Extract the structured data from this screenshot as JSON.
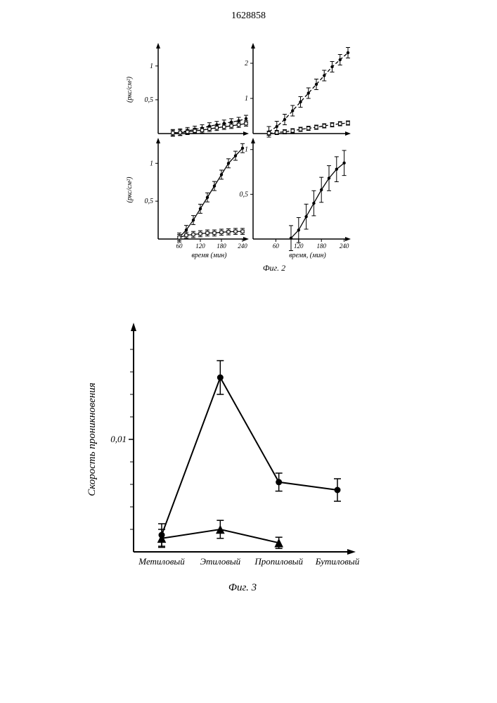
{
  "page_number": "1628858",
  "fig2": {
    "caption": "Фиг. 2",
    "panels": {
      "top_left": {
        "ylabel": "(ркс/см²)",
        "yticks": [
          0.5,
          1
        ],
        "ytick_labels": [
          "0,5",
          "1"
        ],
        "xlim": [
          0,
          240
        ],
        "ylim": [
          0,
          1.3
        ],
        "series1": {
          "marker": "filled-circle",
          "color": "#000000",
          "dash": "dashed",
          "points": [
            [
              40,
              0.01
            ],
            [
              60,
              0.02
            ],
            [
              80,
              0.04
            ],
            [
              100,
              0.06
            ],
            [
              120,
              0.08
            ],
            [
              140,
              0.11
            ],
            [
              160,
              0.13
            ],
            [
              180,
              0.15
            ],
            [
              200,
              0.17
            ],
            [
              220,
              0.19
            ],
            [
              240,
              0.22
            ]
          ],
          "error": 0.05
        },
        "series2": {
          "marker": "open-square",
          "color": "#000000",
          "points": [
            [
              40,
              0.01
            ],
            [
              60,
              0.015
            ],
            [
              80,
              0.025
            ],
            [
              100,
              0.04
            ],
            [
              120,
              0.05
            ],
            [
              140,
              0.07
            ],
            [
              160,
              0.085
            ],
            [
              180,
              0.1
            ],
            [
              200,
              0.115
            ],
            [
              220,
              0.13
            ],
            [
              240,
              0.15
            ]
          ],
          "error": 0.04
        }
      },
      "top_right": {
        "yticks": [
          1,
          2
        ],
        "ytick_labels": [
          "1",
          "2"
        ],
        "xlim": [
          0,
          240
        ],
        "ylim": [
          0,
          2.5
        ],
        "series1": {
          "marker": "filled-circle",
          "color": "#000000",
          "dash": "dashed",
          "points": [
            [
              40,
              0.05
            ],
            [
              60,
              0.2
            ],
            [
              80,
              0.4
            ],
            [
              100,
              0.65
            ],
            [
              120,
              0.9
            ],
            [
              140,
              1.15
            ],
            [
              160,
              1.4
            ],
            [
              180,
              1.65
            ],
            [
              200,
              1.9
            ],
            [
              220,
              2.1
            ],
            [
              240,
              2.3
            ]
          ],
          "error": 0.15
        },
        "series2": {
          "marker": "open-square",
          "color": "#000000",
          "dash": "dashed",
          "points": [
            [
              40,
              0.01
            ],
            [
              60,
              0.03
            ],
            [
              80,
              0.05
            ],
            [
              100,
              0.08
            ],
            [
              120,
              0.12
            ],
            [
              140,
              0.15
            ],
            [
              160,
              0.18
            ],
            [
              180,
              0.22
            ],
            [
              200,
              0.25
            ],
            [
              220,
              0.28
            ],
            [
              240,
              0.3
            ]
          ],
          "error": 0.06
        }
      },
      "bottom_left": {
        "ylabel": "(ркс/см²)",
        "xlabel": "время (мин)",
        "yticks": [
          0.5,
          1
        ],
        "ytick_labels": [
          "0,5",
          "1"
        ],
        "xticks": [
          60,
          120,
          180,
          240
        ],
        "xtick_labels": [
          "60",
          "120",
          "180",
          "240"
        ],
        "xlim": [
          0,
          250
        ],
        "ylim": [
          0,
          1.3
        ],
        "series1": {
          "marker": "filled-circle",
          "color": "#000000",
          "points": [
            [
              60,
              0.02
            ],
            [
              80,
              0.12
            ],
            [
              100,
              0.25
            ],
            [
              120,
              0.4
            ],
            [
              140,
              0.55
            ],
            [
              160,
              0.7
            ],
            [
              180,
              0.85
            ],
            [
              200,
              1.0
            ],
            [
              220,
              1.1
            ],
            [
              240,
              1.2
            ]
          ],
          "error": 0.06
        },
        "series2": {
          "marker": "open-square",
          "color": "#000000",
          "points": [
            [
              60,
              0.02
            ],
            [
              80,
              0.05
            ],
            [
              100,
              0.06
            ],
            [
              120,
              0.07
            ],
            [
              140,
              0.08
            ],
            [
              160,
              0.08
            ],
            [
              180,
              0.09
            ],
            [
              200,
              0.095
            ],
            [
              220,
              0.1
            ],
            [
              240,
              0.1
            ]
          ],
          "error": 0.04
        }
      },
      "bottom_right": {
        "xlabel": "время, (мин)",
        "yticks": [
          0.5,
          1
        ],
        "ytick_labels": [
          "0,5",
          "1"
        ],
        "xticks": [
          60,
          120,
          180,
          240
        ],
        "xtick_labels": [
          "60",
          "120",
          "180",
          "240"
        ],
        "xlim": [
          0,
          250
        ],
        "ylim": [
          0,
          1.1
        ],
        "series1": {
          "marker": "filled-circle",
          "color": "#000000",
          "points": [
            [
              100,
              0.01
            ],
            [
              120,
              0.1
            ],
            [
              140,
              0.25
            ],
            [
              160,
              0.4
            ],
            [
              180,
              0.55
            ],
            [
              200,
              0.68
            ],
            [
              220,
              0.78
            ],
            [
              240,
              0.85
            ]
          ],
          "error": 0.14
        }
      }
    }
  },
  "fig3": {
    "caption": "Фиг. 3",
    "ylabel": "Скорость проникновения",
    "yticks": [
      0.01
    ],
    "ytick_labels": [
      "0,01"
    ],
    "ylim": [
      0,
      0.02
    ],
    "categories": [
      "Метиловый",
      "Этиловый",
      "Пропиловый",
      "Бутиловый"
    ],
    "series1": {
      "marker": "filled-circle",
      "color": "#000000",
      "values": [
        0.0015,
        0.0155,
        0.0062,
        0.0055
      ],
      "errors": [
        0.001,
        0.0015,
        0.0008,
        0.001
      ]
    },
    "series2": {
      "marker": "filled-triangle",
      "color": "#000000",
      "values": [
        0.0012,
        0.002,
        0.0008
      ],
      "errors": [
        0.0008,
        0.0008,
        0.0005
      ]
    }
  },
  "colors": {
    "ink": "#000000",
    "bg": "#ffffff"
  }
}
